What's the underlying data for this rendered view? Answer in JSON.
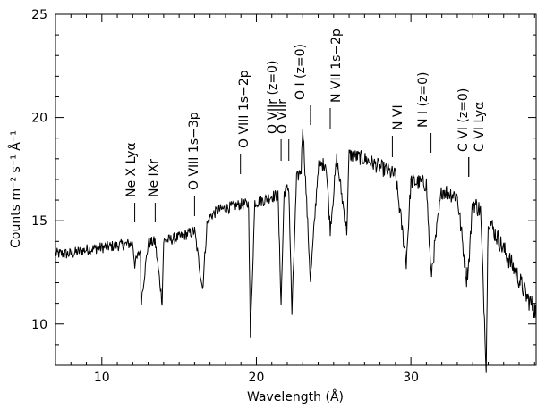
{
  "chart_data": {
    "type": "line",
    "xlabel": "Wavelength (Å)",
    "ylabel": "Counts m⁻² s⁻¹ Å⁻¹",
    "xlim": [
      7,
      38.1
    ],
    "ylim": [
      8,
      25
    ],
    "x_ticks": [
      {
        "value": 10,
        "label": "10"
      },
      {
        "value": 20,
        "label": "20"
      },
      {
        "value": 30,
        "label": "30"
      }
    ],
    "y_ticks": [
      {
        "value": 10,
        "label": "10"
      },
      {
        "value": 15,
        "label": "15"
      },
      {
        "value": 20,
        "label": "20"
      },
      {
        "value": 25,
        "label": "25"
      }
    ],
    "grid": false,
    "series": [
      {
        "color": "#000000",
        "x": [
          7.0,
          8.0,
          9.0,
          10.0,
          11.0,
          12.0,
          12.13,
          12.5,
          12.53,
          13.0,
          13.44,
          13.9,
          14.0,
          15.0,
          16.0,
          16.52,
          16.8,
          17.0,
          17.5,
          18.0,
          18.5,
          19.0,
          19.5,
          19.61,
          19.9,
          20.5,
          21.0,
          21.4,
          21.6,
          21.8,
          22.1,
          22.3,
          22.6,
          22.9,
          23.0,
          23.5,
          24.0,
          24.5,
          24.78,
          25.2,
          25.85,
          26.0,
          27.0,
          28.0,
          29.0,
          29.7,
          30.0,
          31.0,
          31.3,
          32.0,
          33.0,
          33.6,
          33.74,
          34.0,
          34.5,
          34.87,
          35.0,
          35.3,
          36.0,
          36.8,
          37.5,
          38.1
        ],
        "y": [
          13.4,
          13.4,
          13.6,
          13.7,
          13.8,
          13.9,
          12.9,
          13.6,
          11.0,
          13.9,
          14.0,
          11.1,
          14.0,
          14.2,
          14.5,
          11.7,
          14.8,
          15.2,
          15.5,
          15.6,
          15.7,
          15.8,
          15.8,
          9.4,
          15.9,
          16.0,
          16.2,
          16.2,
          11.0,
          16.4,
          16.6,
          10.5,
          17.0,
          17.5,
          19.7,
          12.1,
          17.6,
          17.8,
          14.6,
          18.0,
          14.5,
          18.2,
          18.0,
          17.6,
          17.2,
          13.0,
          16.9,
          16.8,
          12.3,
          16.5,
          16.2,
          12.2,
          13.0,
          15.9,
          15.5,
          8.0,
          15.2,
          14.6,
          13.6,
          12.5,
          11.3,
          10.6
        ]
      }
    ],
    "annotations": [
      {
        "text": "Ne X Lyα",
        "x": 12.13
      },
      {
        "text": "Ne IXr",
        "x": 13.45
      },
      {
        "text": "O VIII 1s−3p",
        "x": 16.0
      },
      {
        "text": "O VIII 1s−2p",
        "x": 18.97
      },
      {
        "text": "O VIIr (z=0)",
        "x": 21.6
      },
      {
        "text": "O VIIr",
        "x": 22.1
      },
      {
        "text": "O I (z=0)",
        "x": 23.5
      },
      {
        "text": "N VII 1s−2p",
        "x": 24.78
      },
      {
        "text": "N VI",
        "x": 28.8
      },
      {
        "text": "N I (z=0)",
        "x": 31.3
      },
      {
        "text": "C VI (z=0)",
        "x": 33.74
      },
      {
        "text": "C VI Lyα",
        "x": 33.74
      }
    ]
  }
}
